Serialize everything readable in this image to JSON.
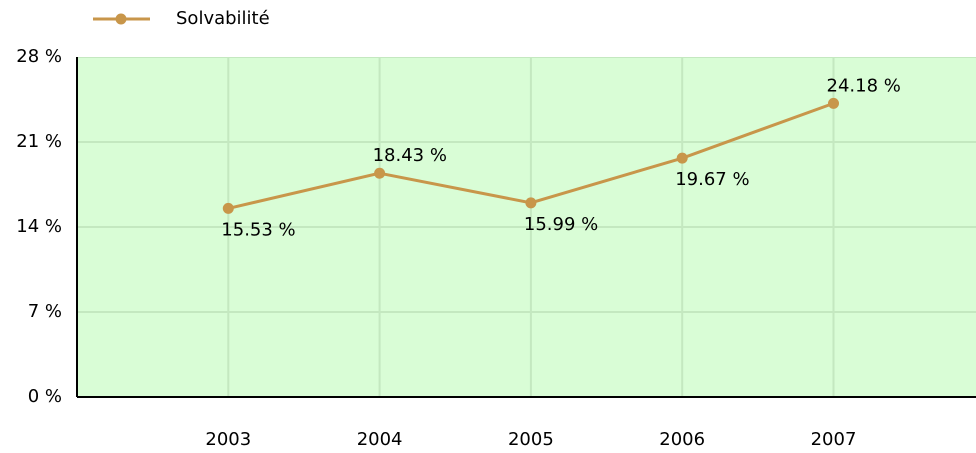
{
  "chart_data": {
    "type": "line",
    "categories": [
      "2003",
      "2004",
      "2005",
      "2006",
      "2007"
    ],
    "series": [
      {
        "name": "Solvabilité",
        "color": "#c8964a",
        "values": [
          15.53,
          18.43,
          15.99,
          19.67,
          24.18
        ],
        "value_labels": [
          "15.53 %",
          "18.43 %",
          "15.99 %",
          "19.67 %",
          "24.18 %"
        ]
      }
    ],
    "ylim": [
      0,
      28
    ],
    "yticks": [
      {
        "value": 0,
        "label": "0 %"
      },
      {
        "value": 7,
        "label": "7 %"
      },
      {
        "value": 14,
        "label": "14 %"
      },
      {
        "value": 21,
        "label": "21 %"
      },
      {
        "value": 28,
        "label": "28 %"
      }
    ],
    "grid": true,
    "legend": "top"
  }
}
